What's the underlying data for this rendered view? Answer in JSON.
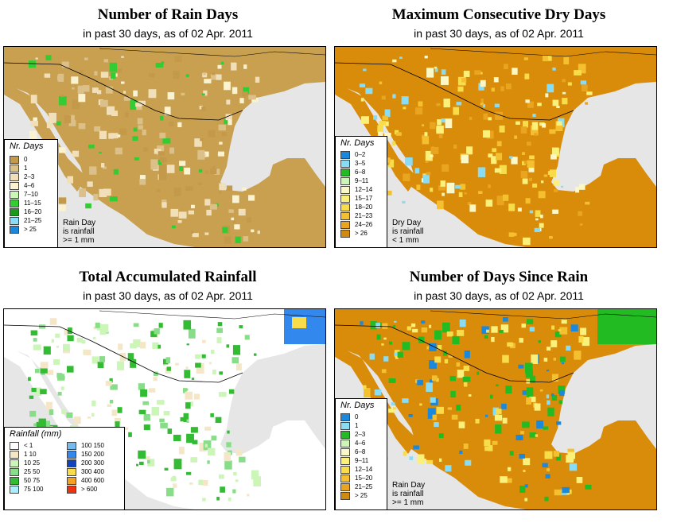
{
  "date": "02 Apr. 2011",
  "panels": [
    {
      "id": "rain-days",
      "title": "Number of Rain Days",
      "subtitle": "in past 30 days, as of  02 Apr. 2011",
      "land_color": "#c8a050",
      "legend": {
        "title": "Nr. Days",
        "items": [
          {
            "label": "0",
            "color": "#c49a4a"
          },
          {
            "label": "1",
            "color": "#dcc08a"
          },
          {
            "label": "2–3",
            "color": "#f0dfb8"
          },
          {
            "label": "4–6",
            "color": "#fbf3d0"
          },
          {
            "label": "7–10",
            "color": "#ccf5b8"
          },
          {
            "label": "11–15",
            "color": "#33cc33"
          },
          {
            "label": "16–20",
            "color": "#1a9a1a"
          },
          {
            "label": "21–25",
            "color": "#88ddf5"
          },
          {
            "label": "> 25",
            "color": "#1a88dd"
          }
        ]
      },
      "note": [
        "Rain Day",
        "is rainfall",
        ">= 1 mm"
      ]
    },
    {
      "id": "dry-days",
      "title": "Maximum Consecutive Dry Days",
      "subtitle": "in past 30 days, as of  02 Apr. 2011",
      "land_color": "#d98c0a",
      "legend": {
        "title": "Nr. Days",
        "items": [
          {
            "label": "0–2",
            "color": "#1a88dd"
          },
          {
            "label": "3–5",
            "color": "#88ddf5"
          },
          {
            "label": "6–8",
            "color": "#22bb22"
          },
          {
            "label": "9–11",
            "color": "#ccf5b8"
          },
          {
            "label": "12–14",
            "color": "#fbf8c8"
          },
          {
            "label": "15–17",
            "color": "#faf07a"
          },
          {
            "label": "18–20",
            "color": "#f8dc4a"
          },
          {
            "label": "21–23",
            "color": "#f5c030"
          },
          {
            "label": "24–26",
            "color": "#eaa520"
          },
          {
            "label": "> 26",
            "color": "#d08a10"
          }
        ]
      },
      "note": [
        "Dry Day",
        "is rainfall",
        "< 1 mm"
      ]
    },
    {
      "id": "rainfall",
      "title": "Total Accumulated Rainfall",
      "subtitle": "in past 30 days, as of  02 Apr. 2011",
      "land_color": "#ffffff",
      "legend": {
        "title": "Rainfall (mm)",
        "left": [
          {
            "label": "< 1",
            "color": "#ffffff"
          },
          {
            "label": "1    10",
            "color": "#f5e6c8"
          },
          {
            "label": "10    25",
            "color": "#ccf5b8"
          },
          {
            "label": "25    50",
            "color": "#88dd88"
          },
          {
            "label": "50    75",
            "color": "#33bb33"
          },
          {
            "label": "75    100",
            "color": "#aaeeff"
          }
        ],
        "right": [
          {
            "label": "100  150",
            "color": "#77bbee"
          },
          {
            "label": "150  200",
            "color": "#3388ee"
          },
          {
            "label": "200  300",
            "color": "#1144bb"
          },
          {
            "label": "300  400",
            "color": "#f8dc4a"
          },
          {
            "label": "400  600",
            "color": "#f5a020"
          },
          {
            "label": "> 600",
            "color": "#ee3311"
          }
        ]
      }
    },
    {
      "id": "since-rain",
      "title": "Number of Days Since Rain",
      "subtitle": "in past 30 days, as of  02 Apr. 2011",
      "land_color": "#d98c0a",
      "legend": {
        "title": "Nr. Days",
        "items": [
          {
            "label": "0",
            "color": "#1a88dd"
          },
          {
            "label": "1",
            "color": "#88ddf5"
          },
          {
            "label": "2–3",
            "color": "#22bb22"
          },
          {
            "label": "4–6",
            "color": "#ccf5b8"
          },
          {
            "label": "6–8",
            "color": "#fbf8c8"
          },
          {
            "label": "9–11",
            "color": "#faf07a"
          },
          {
            "label": "12–14",
            "color": "#f8dc4a"
          },
          {
            "label": "15–20",
            "color": "#f5c030"
          },
          {
            "label": "21–25",
            "color": "#eaa520"
          },
          {
            "label": "> 25",
            "color": "#d08a10"
          }
        ]
      },
      "note": [
        "Rain Day",
        "is rainfall",
        ">= 1 mm"
      ]
    }
  ]
}
